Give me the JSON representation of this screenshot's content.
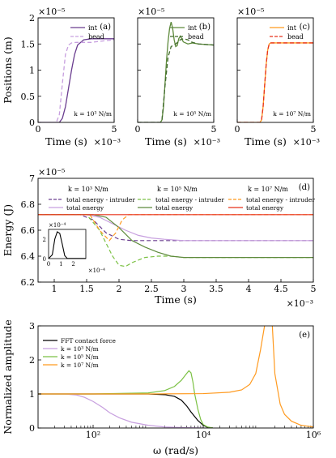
{
  "colors": {
    "purple": "#6a3d8f",
    "lavender": "#c79fdf",
    "green": "#5e8a3c",
    "lightgreen": "#7bc143",
    "orange": "#ff9a1f",
    "red": "#e8321a"
  },
  "chart_data": [
    {
      "type": "line",
      "panel_label": "(a)",
      "ylabel": "Positions (m)",
      "xlabel": "Time (s)",
      "x_exponent": "×10⁻³",
      "y_exponent": "×10⁻⁵",
      "xlim": [
        0,
        5
      ],
      "ylim": [
        0,
        2
      ],
      "xticks": [
        "0",
        "5"
      ],
      "yticks": [
        "0",
        "0.5",
        "1",
        "1.5",
        "2"
      ],
      "annotation": "k = 10³ N/m",
      "legend": [
        "int",
        "bead"
      ],
      "series": [
        {
          "name": "int",
          "color": "#6a3d8f",
          "dash": false,
          "x": [
            0,
            1.4,
            1.6,
            1.8,
            2.0,
            2.2,
            2.4,
            2.6,
            3.0,
            3.5,
            4.0,
            5.0
          ],
          "y": [
            0,
            0,
            0.08,
            0.3,
            0.65,
            1.0,
            1.3,
            1.48,
            1.58,
            1.6,
            1.6,
            1.6
          ]
        },
        {
          "name": "bead",
          "color": "#c79fdf",
          "dash": true,
          "x": [
            0,
            1.2,
            1.4,
            1.6,
            1.8,
            2.0,
            2.2,
            2.5,
            3.0,
            3.5,
            4.0,
            5.0
          ],
          "y": [
            0,
            0,
            0.15,
            0.75,
            1.3,
            1.48,
            1.52,
            1.53,
            1.53,
            1.53,
            1.55,
            1.58
          ]
        }
      ]
    },
    {
      "type": "line",
      "panel_label": "(b)",
      "xlabel": "Time (s)",
      "x_exponent": "×10⁻³",
      "y_exponent": "×10⁻⁵",
      "xlim": [
        0,
        5
      ],
      "ylim": [
        0,
        2
      ],
      "xticks": [
        "0",
        "5"
      ],
      "annotation": "k = 10⁵ N/m",
      "legend": [
        "int",
        "bead"
      ],
      "series": [
        {
          "name": "int",
          "color": "#5e8a3c",
          "dash": false,
          "x": [
            0,
            1.5,
            1.6,
            1.7,
            1.8,
            1.9,
            2.0,
            2.1,
            2.2,
            2.3,
            2.4,
            2.5,
            2.6,
            2.7,
            2.8,
            2.9,
            3.0,
            3.3,
            3.6,
            4.0,
            5.0
          ],
          "y": [
            0,
            0,
            0.05,
            0.3,
            0.75,
            1.2,
            1.55,
            1.8,
            1.92,
            1.8,
            1.58,
            1.45,
            1.47,
            1.6,
            1.65,
            1.6,
            1.54,
            1.5,
            1.52,
            1.5,
            1.48
          ]
        },
        {
          "name": "bead",
          "color": "#3f6a2a",
          "dash": true,
          "x": [
            0,
            1.5,
            1.6,
            1.8,
            2.0,
            2.2,
            2.5,
            2.8,
            3.0,
            3.3,
            3.6,
            4.0,
            5.0
          ],
          "y": [
            0,
            0,
            0.05,
            0.7,
            1.25,
            1.45,
            1.5,
            1.58,
            1.6,
            1.58,
            1.53,
            1.5,
            1.48
          ]
        }
      ]
    },
    {
      "type": "line",
      "panel_label": "(c)",
      "xlabel": "Time (s)",
      "x_exponent": "×10⁻³",
      "y_exponent": "×10⁻⁵",
      "xlim": [
        0,
        5
      ],
      "ylim": [
        0,
        2
      ],
      "xticks": [
        "0",
        "5"
      ],
      "annotation": "k = 10⁷ N/m",
      "legend": [
        "int",
        "bead"
      ],
      "series": [
        {
          "name": "int",
          "color": "#ff9a1f",
          "dash": false,
          "x": [
            0,
            1.5,
            1.6,
            1.7,
            1.8,
            1.9,
            2.0,
            2.1,
            2.2,
            2.4,
            2.6,
            3.0,
            5.0
          ],
          "y": [
            0,
            0,
            0.05,
            0.3,
            0.7,
            1.1,
            1.38,
            1.5,
            1.52,
            1.52,
            1.52,
            1.52,
            1.52
          ]
        },
        {
          "name": "bead",
          "color": "#e8321a",
          "dash": true,
          "x": [
            0,
            1.5,
            1.6,
            1.7,
            1.8,
            1.9,
            2.0,
            2.1,
            2.2,
            2.4,
            2.6,
            3.0,
            5.0
          ],
          "y": [
            0,
            0,
            0.05,
            0.3,
            0.7,
            1.1,
            1.38,
            1.5,
            1.52,
            1.52,
            1.52,
            1.52,
            1.52
          ]
        }
      ]
    },
    {
      "type": "line",
      "panel_label": "(d)",
      "ylabel": "Energy (J)",
      "xlabel": "Time (s)",
      "x_exponent": "×10⁻³",
      "y_exponent": "×10⁻⁵",
      "xlim": [
        0.75,
        5
      ],
      "ylim": [
        6.2,
        7
      ],
      "xticks": [
        "1",
        "1.5",
        "2",
        "2.5",
        "3",
        "3.5",
        "4",
        "4.5",
        "5"
      ],
      "yticks": [
        "6.2",
        "6.4",
        "6.6",
        "6.8",
        "7"
      ],
      "legend_groups": [
        {
          "title": "k = 10³ N/m",
          "items": [
            "total energy - intruder",
            "total energy"
          ]
        },
        {
          "title": "k = 10⁵ N/m",
          "items": [
            "total energy - intruder",
            "total energy"
          ]
        },
        {
          "title": "k = 10⁷ N/m",
          "items": [
            "total energy - intruder",
            "total energy"
          ]
        }
      ],
      "series": [
        {
          "name": "k=10³ total energy - intruder",
          "color": "#6a3d8f",
          "dash": true,
          "x": [
            0.75,
            1.4,
            1.6,
            1.8,
            2.0,
            2.2,
            2.4,
            2.6,
            3.0,
            5.0
          ],
          "y": [
            6.72,
            6.72,
            6.68,
            6.58,
            6.53,
            6.52,
            6.52,
            6.52,
            6.52,
            6.52
          ]
        },
        {
          "name": "k=10³ total energy",
          "color": "#c79fdf",
          "dash": false,
          "x": [
            0.75,
            1.5,
            1.7,
            1.9,
            2.1,
            2.3,
            2.5,
            2.7,
            3.0,
            5.0
          ],
          "y": [
            6.72,
            6.72,
            6.7,
            6.65,
            6.6,
            6.56,
            6.54,
            6.53,
            6.52,
            6.52
          ]
        },
        {
          "name": "k=10⁵ total energy - intruder",
          "color": "#7bc143",
          "dash": true,
          "x": [
            0.75,
            1.5,
            1.7,
            1.9,
            2.0,
            2.1,
            2.2,
            2.4,
            2.6,
            2.8,
            3.0,
            3.3,
            3.6,
            4.0,
            5.0
          ],
          "y": [
            6.72,
            6.72,
            6.6,
            6.4,
            6.33,
            6.32,
            6.35,
            6.39,
            6.4,
            6.4,
            6.39,
            6.39,
            6.39,
            6.39,
            6.39
          ]
        },
        {
          "name": "k=10⁵ total energy",
          "color": "#5e8a3c",
          "dash": false,
          "x": [
            0.75,
            1.6,
            1.8,
            2.0,
            2.2,
            2.4,
            2.6,
            2.8,
            3.0,
            5.0
          ],
          "y": [
            6.72,
            6.72,
            6.7,
            6.62,
            6.52,
            6.47,
            6.43,
            6.4,
            6.39,
            6.39
          ]
        },
        {
          "name": "k=10⁷ total energy - intruder",
          "color": "#ff9a1f",
          "dash": true,
          "x": [
            0.75,
            1.55,
            1.7,
            1.85,
            1.95,
            2.05,
            2.15,
            2.3,
            5.0
          ],
          "y": [
            6.72,
            6.72,
            6.6,
            6.52,
            6.58,
            6.68,
            6.72,
            6.72,
            6.72
          ]
        },
        {
          "name": "k=10⁷ total energy",
          "color": "#e8321a",
          "dash": false,
          "x": [
            0.75,
            5.0
          ],
          "y": [
            6.72,
            6.72
          ]
        }
      ],
      "inset": {
        "x_exponent": "×10⁻⁴",
        "y_exponent": "×10⁻⁴",
        "xticks": [
          "0",
          "1",
          "2"
        ],
        "yticks": [
          "0",
          "2"
        ],
        "xlim": [
          0,
          3
        ],
        "ylim": [
          0,
          3
        ],
        "series": [
          {
            "name": "inset",
            "color": "#000000",
            "dash": false,
            "x": [
              0,
              0.3,
              0.5,
              0.7,
              0.9,
              1.1,
              1.3,
              1.5,
              3.0
            ],
            "y": [
              0,
              0.4,
              2.0,
              2.75,
              2.6,
              1.5,
              0.3,
              0.02,
              0.02
            ]
          }
        ]
      }
    },
    {
      "type": "line",
      "panel_label": "(e)",
      "ylabel": "Normalized amplitude",
      "xlabel": "ω  (rad/s)",
      "x_scale": "log",
      "xlim": [
        10,
        1000000
      ],
      "ylim": [
        0,
        3
      ],
      "yticks": [
        "0",
        "1",
        "2",
        "3"
      ],
      "xticks": [
        "10²",
        "10⁴",
        "10⁶"
      ],
      "legend": [
        "FFT contact force",
        "k = 10³ N/m",
        "k = 10⁵ N/m",
        "k = 10⁷ N/m"
      ],
      "series": [
        {
          "name": "FFT contact force",
          "color": "#000000",
          "dash": false,
          "x": [
            10,
            100,
            1000,
            2000,
            3000,
            4000,
            5000,
            6000,
            8000,
            10000,
            12000,
            15000
          ],
          "y": [
            1,
            1,
            1,
            0.98,
            0.93,
            0.82,
            0.65,
            0.47,
            0.22,
            0.08,
            0.02,
            0
          ]
        },
        {
          "name": "k = 10³ N/m",
          "color": "#c79fdf",
          "dash": false,
          "x": [
            10,
            30,
            50,
            70,
            100,
            150,
            200,
            300,
            500,
            1000,
            2000,
            5000,
            10000
          ],
          "y": [
            1,
            1,
            0.97,
            0.9,
            0.78,
            0.6,
            0.45,
            0.3,
            0.17,
            0.08,
            0.03,
            0.01,
            0
          ]
        },
        {
          "name": "k = 10⁵ N/m",
          "color": "#7bc143",
          "dash": false,
          "x": [
            10,
            100,
            1000,
            2000,
            3000,
            4000,
            5000,
            5500,
            6000,
            6500,
            7000,
            8000,
            9000,
            10000,
            12000,
            15000
          ],
          "y": [
            1,
            1,
            1.03,
            1.1,
            1.22,
            1.4,
            1.6,
            1.68,
            1.62,
            1.35,
            1.0,
            0.55,
            0.25,
            0.1,
            0.03,
            0
          ]
        },
        {
          "name": "k = 10⁷ N/m",
          "color": "#ff9a1f",
          "dash": false,
          "x": [
            10,
            100,
            1000,
            10000,
            30000,
            50000,
            70000,
            90000,
            110000,
            130000,
            140000,
            160000,
            180000,
            200000,
            250000,
            300000,
            400000,
            600000,
            1000000
          ],
          "y": [
            1,
            1,
            1,
            1.01,
            1.05,
            1.12,
            1.28,
            1.6,
            2.3,
            3.0,
            3.5,
            3.5,
            3.0,
            1.6,
            0.7,
            0.4,
            0.2,
            0.08,
            0.03
          ]
        }
      ]
    }
  ]
}
